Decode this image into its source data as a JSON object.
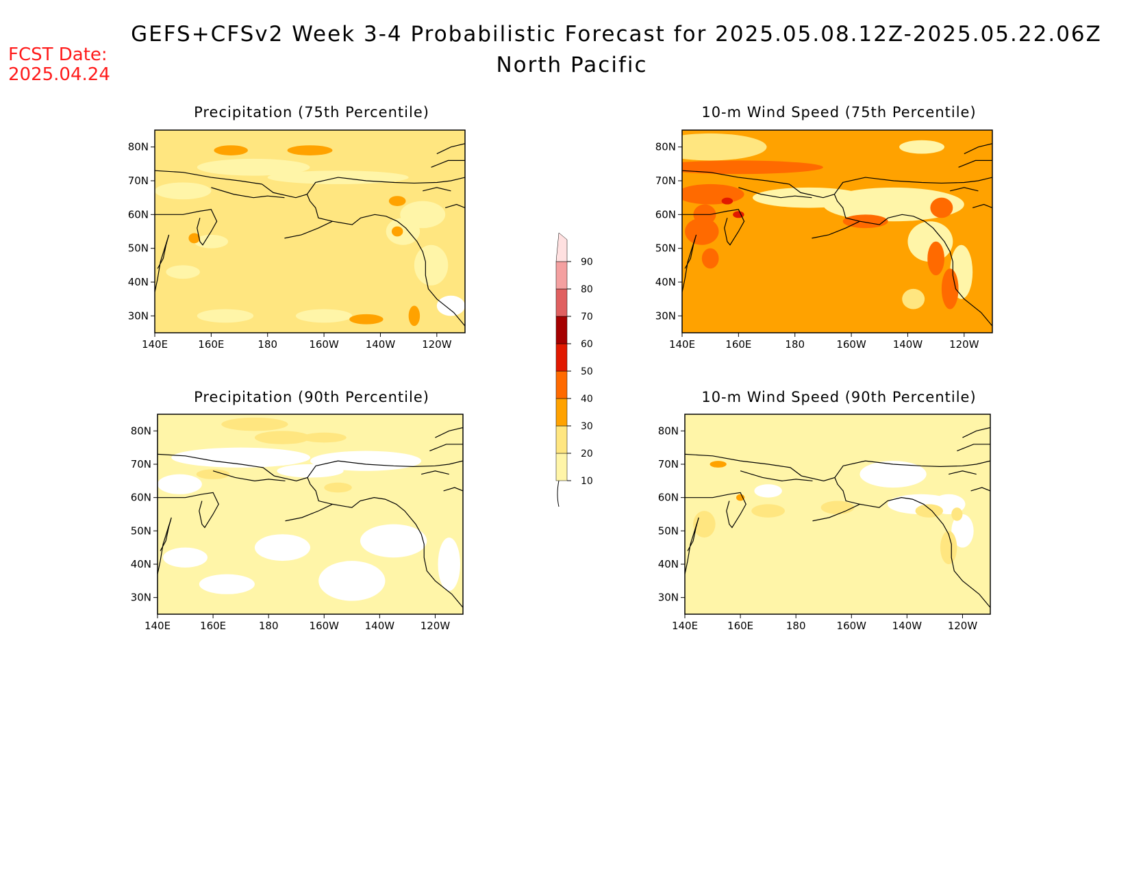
{
  "header": {
    "title": "GEFS+CFSv2 Week 3-4 Probabilistic Forecast for 2025.05.08.12Z-2025.05.22.06Z",
    "subtitle": "North Pacific",
    "fcst_label": "FCST Date:",
    "fcst_date": "2025.04.24"
  },
  "axes": {
    "lat_labels": [
      "80N",
      "70N",
      "60N",
      "50N",
      "40N",
      "30N"
    ],
    "lon_labels": [
      "140E",
      "160E",
      "180",
      "160W",
      "140W",
      "120W"
    ]
  },
  "panels": [
    {
      "id": "precip75",
      "title": "Precipitation (75th Percentile)",
      "base_color": "#ffe680"
    },
    {
      "id": "wind75",
      "title": "10-m Wind Speed (75th Percentile)",
      "base_color": "#ffa200"
    },
    {
      "id": "precip90",
      "title": "Precipitation (90th Percentile)",
      "base_color": "#fff5a8"
    },
    {
      "id": "wind90",
      "title": "10-m Wind Speed (90th Percentile)",
      "base_color": "#fff5a8"
    }
  ],
  "colorbar": {
    "levels": [
      "10",
      "20",
      "30",
      "40",
      "50",
      "60",
      "70",
      "80",
      "90"
    ],
    "colors": [
      "#fff5a8",
      "#ffe680",
      "#ffa200",
      "#ff6a00",
      "#e11900",
      "#a50000",
      "#e06060",
      "#f4a0a0",
      "#ffe0e0"
    ]
  }
}
